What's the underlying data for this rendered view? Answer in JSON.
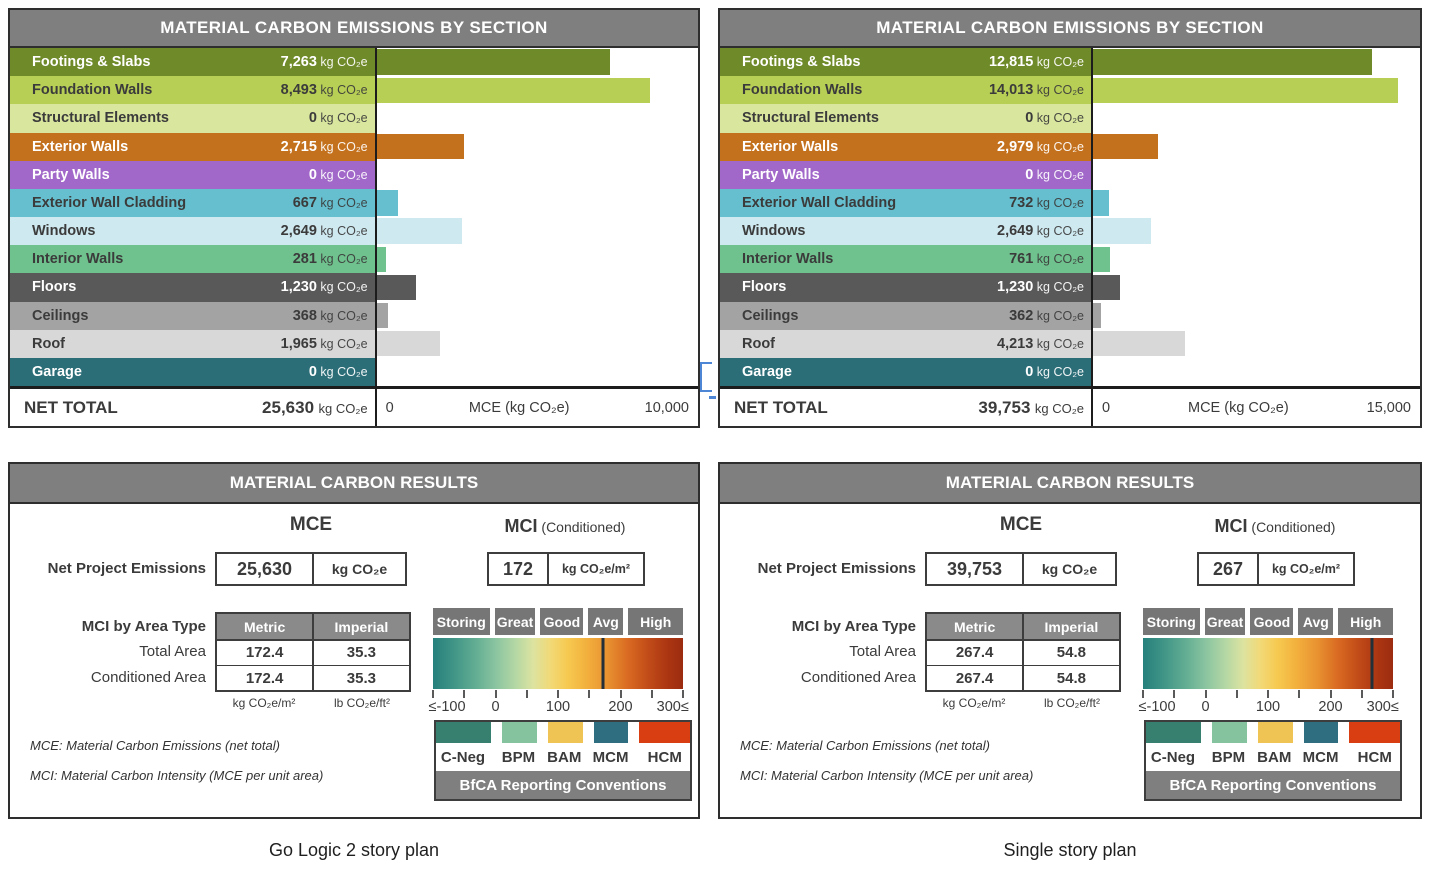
{
  "panels": [
    {
      "caption": "Go Logic 2 story plan",
      "emissions_table": {
        "title": "MATERIAL CARBON EMISSIONS BY SECTION",
        "axis": {
          "min_label": "0",
          "title": "MCE (kg CO₂e)",
          "max_label": "10,000",
          "max_value": 10000
        },
        "rows": [
          {
            "label": "Footings & Slabs",
            "value": "7,263",
            "value_num": 7263,
            "unit": "kg CO₂e",
            "color": "#6f8a28",
            "text": "light"
          },
          {
            "label": "Foundation Walls",
            "value": "8,493",
            "value_num": 8493,
            "unit": "kg CO₂e",
            "color": "#b7cf55",
            "text": "dark"
          },
          {
            "label": "Structural Elements",
            "value": "0",
            "value_num": 0,
            "unit": "kg CO₂e",
            "color": "#d9e69e",
            "text": "dark"
          },
          {
            "label": "Exterior Walls",
            "value": "2,715",
            "value_num": 2715,
            "unit": "kg CO₂e",
            "color": "#c4711d",
            "text": "light"
          },
          {
            "label": "Party Walls",
            "value": "0",
            "value_num": 0,
            "unit": "kg CO₂e",
            "color": "#a168c9",
            "text": "light"
          },
          {
            "label": "Exterior Wall Cladding",
            "value": "667",
            "value_num": 667,
            "unit": "kg CO₂e",
            "color": "#66bfce",
            "text": "dark"
          },
          {
            "label": "Windows",
            "value": "2,649",
            "value_num": 2649,
            "unit": "kg CO₂e",
            "color": "#cfe9f0",
            "text": "dark"
          },
          {
            "label": "Interior Walls",
            "value": "281",
            "value_num": 281,
            "unit": "kg CO₂e",
            "color": "#6fc28e",
            "text": "dark"
          },
          {
            "label": "Floors",
            "value": "1,230",
            "value_num": 1230,
            "unit": "kg CO₂e",
            "color": "#595959",
            "text": "light"
          },
          {
            "label": "Ceilings",
            "value": "368",
            "value_num": 368,
            "unit": "kg CO₂e",
            "color": "#a3a3a3",
            "text": "dark"
          },
          {
            "label": "Roof",
            "value": "1,965",
            "value_num": 1965,
            "unit": "kg CO₂e",
            "color": "#d8d8d8",
            "text": "dark"
          },
          {
            "label": "Garage",
            "value": "0",
            "value_num": 0,
            "unit": "kg CO₂e",
            "color": "#2c6e78",
            "text": "light"
          }
        ],
        "net_total": {
          "label": "NET TOTAL",
          "value": "25,630",
          "unit": "kg CO₂e"
        }
      },
      "results": {
        "title": "MATERIAL CARBON RESULTS",
        "mce_heading": "MCE",
        "mci_heading": "MCI",
        "mci_heading_suffix": "(Conditioned)",
        "net_label": "Net Project Emissions",
        "mce_value": "25,630",
        "mce_unit": "kg CO₂e",
        "mci_value": "172",
        "mci_unit": "kg CO₂e/m²",
        "area_table": {
          "label": "MCI by Area Type",
          "col_headers": [
            "Metric",
            "Imperial"
          ],
          "rows": [
            {
              "label": "Total Area",
              "metric": "172.4",
              "imperial": "35.3"
            },
            {
              "label": "Conditioned Area",
              "metric": "172.4",
              "imperial": "35.3"
            }
          ],
          "units": [
            "kg CO₂e/m²",
            "lb CO₂e/ft²"
          ]
        },
        "scale": {
          "zones": [
            "Storing",
            "Great",
            "Good",
            "Avg",
            "High"
          ],
          "ticks": [
            "≤-100",
            "0",
            "100",
            "200",
            "300≤"
          ],
          "min": -100,
          "max": 300,
          "marker_value": 172
        },
        "legend": {
          "items": [
            {
              "label": "C-Neg",
              "color": "#377f6e"
            },
            {
              "label": "BPM",
              "color": "#84c39e"
            },
            {
              "label": "BAM",
              "color": "#f0c454"
            },
            {
              "label": "MCM",
              "color": "#2e6e80"
            },
            {
              "label": "HCM",
              "color": "#d93d12"
            }
          ],
          "footer": "BfCA Reporting Conventions"
        },
        "footnotes": [
          "MCE: Material Carbon Emissions (net total)",
          "MCI: Material Carbon Intensity (MCE per unit area)"
        ]
      }
    },
    {
      "caption": "Single story plan",
      "emissions_table": {
        "title": "MATERIAL CARBON EMISSIONS BY SECTION",
        "axis": {
          "min_label": "0",
          "title": "MCE (kg CO₂e)",
          "max_label": "15,000",
          "max_value": 15000
        },
        "rows": [
          {
            "label": "Footings & Slabs",
            "value": "12,815",
            "value_num": 12815,
            "unit": "kg CO₂e",
            "color": "#6f8a28",
            "text": "light"
          },
          {
            "label": "Foundation Walls",
            "value": "14,013",
            "value_num": 14013,
            "unit": "kg CO₂e",
            "color": "#b7cf55",
            "text": "dark"
          },
          {
            "label": "Structural Elements",
            "value": "0",
            "value_num": 0,
            "unit": "kg CO₂e",
            "color": "#d9e69e",
            "text": "dark"
          },
          {
            "label": "Exterior Walls",
            "value": "2,979",
            "value_num": 2979,
            "unit": "kg CO₂e",
            "color": "#c4711d",
            "text": "light"
          },
          {
            "label": "Party Walls",
            "value": "0",
            "value_num": 0,
            "unit": "kg CO₂e",
            "color": "#a168c9",
            "text": "light"
          },
          {
            "label": "Exterior Wall Cladding",
            "value": "732",
            "value_num": 732,
            "unit": "kg CO₂e",
            "color": "#66bfce",
            "text": "dark"
          },
          {
            "label": "Windows",
            "value": "2,649",
            "value_num": 2649,
            "unit": "kg CO₂e",
            "color": "#cfe9f0",
            "text": "dark"
          },
          {
            "label": "Interior Walls",
            "value": "761",
            "value_num": 761,
            "unit": "kg CO₂e",
            "color": "#6fc28e",
            "text": "dark"
          },
          {
            "label": "Floors",
            "value": "1,230",
            "value_num": 1230,
            "unit": "kg CO₂e",
            "color": "#595959",
            "text": "light"
          },
          {
            "label": "Ceilings",
            "value": "362",
            "value_num": 362,
            "unit": "kg CO₂e",
            "color": "#a3a3a3",
            "text": "dark"
          },
          {
            "label": "Roof",
            "value": "4,213",
            "value_num": 4213,
            "unit": "kg CO₂e",
            "color": "#d8d8d8",
            "text": "dark"
          },
          {
            "label": "Garage",
            "value": "0",
            "value_num": 0,
            "unit": "kg CO₂e",
            "color": "#2c6e78",
            "text": "light"
          }
        ],
        "net_total": {
          "label": "NET TOTAL",
          "value": "39,753",
          "unit": "kg CO₂e"
        }
      },
      "results": {
        "title": "MATERIAL CARBON RESULTS",
        "mce_heading": "MCE",
        "mci_heading": "MCI",
        "mci_heading_suffix": "(Conditioned)",
        "net_label": "Net Project Emissions",
        "mce_value": "39,753",
        "mce_unit": "kg CO₂e",
        "mci_value": "267",
        "mci_unit": "kg CO₂e/m²",
        "area_table": {
          "label": "MCI by Area Type",
          "col_headers": [
            "Metric",
            "Imperial"
          ],
          "rows": [
            {
              "label": "Total Area",
              "metric": "267.4",
              "imperial": "54.8"
            },
            {
              "label": "Conditioned Area",
              "metric": "267.4",
              "imperial": "54.8"
            }
          ],
          "units": [
            "kg CO₂e/m²",
            "lb CO₂e/ft²"
          ]
        },
        "scale": {
          "zones": [
            "Storing",
            "Great",
            "Good",
            "Avg",
            "High"
          ],
          "ticks": [
            "≤-100",
            "0",
            "100",
            "200",
            "300≤"
          ],
          "min": -100,
          "max": 300,
          "marker_value": 267
        },
        "legend": {
          "items": [
            {
              "label": "C-Neg",
              "color": "#377f6e"
            },
            {
              "label": "BPM",
              "color": "#84c39e"
            },
            {
              "label": "BAM",
              "color": "#f0c454"
            },
            {
              "label": "MCM",
              "color": "#2e6e80"
            },
            {
              "label": "HCM",
              "color": "#d93d12"
            }
          ],
          "footer": "BfCA Reporting Conventions"
        },
        "footnotes": [
          "MCE: Material Carbon Emissions (net total)",
          "MCI: Material Carbon Intensity (MCE per unit area)"
        ]
      }
    }
  ],
  "chart_data": [
    {
      "type": "bar",
      "orientation": "horizontal",
      "title": "MATERIAL CARBON EMISSIONS BY SECTION",
      "subtitle": "Go Logic 2 story plan",
      "categories": [
        "Footings & Slabs",
        "Foundation Walls",
        "Structural Elements",
        "Exterior Walls",
        "Party Walls",
        "Exterior Wall Cladding",
        "Windows",
        "Interior Walls",
        "Floors",
        "Ceilings",
        "Roof",
        "Garage"
      ],
      "values": [
        7263,
        8493,
        0,
        2715,
        0,
        667,
        2649,
        281,
        1230,
        368,
        1965,
        0
      ],
      "xlabel": "MCE (kg CO₂e)",
      "xlim": [
        0,
        10000
      ],
      "net_total": 25630,
      "mci_conditioned": 172,
      "mci_total_area_metric": 172.4,
      "mci_total_area_imperial": 35.3,
      "mci_conditioned_area_metric": 172.4,
      "mci_conditioned_area_imperial": 35.3
    },
    {
      "type": "bar",
      "orientation": "horizontal",
      "title": "MATERIAL CARBON EMISSIONS BY SECTION",
      "subtitle": "Single story plan",
      "categories": [
        "Footings & Slabs",
        "Foundation Walls",
        "Structural Elements",
        "Exterior Walls",
        "Party Walls",
        "Exterior Wall Cladding",
        "Windows",
        "Interior Walls",
        "Floors",
        "Ceilings",
        "Roof",
        "Garage"
      ],
      "values": [
        12815,
        14013,
        0,
        2979,
        0,
        732,
        2649,
        761,
        1230,
        362,
        4213,
        0
      ],
      "xlabel": "MCE (kg CO₂e)",
      "xlim": [
        0,
        15000
      ],
      "net_total": 39753,
      "mci_conditioned": 267,
      "mci_total_area_metric": 267.4,
      "mci_total_area_imperial": 54.8,
      "mci_conditioned_area_metric": 267.4,
      "mci_conditioned_area_imperial": 54.8
    }
  ]
}
